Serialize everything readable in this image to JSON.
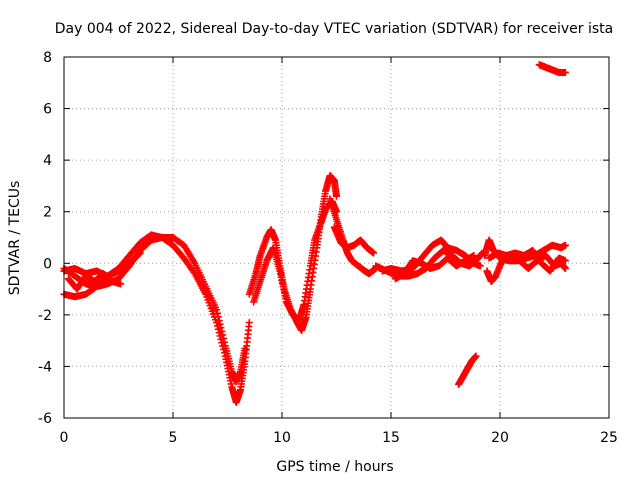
{
  "chart_data": {
    "type": "scatter",
    "title": "Day 004 of 2022, Sidereal Day-to-day VTEC variation (SDTVAR) for receiver ista",
    "xlabel": "GPS time / hours",
    "ylabel": "SDTVAR / TECUs",
    "xlim": [
      0,
      25
    ],
    "ylim": [
      -6,
      8
    ],
    "xticks": [
      0,
      5,
      10,
      15,
      20,
      25
    ],
    "yticks": [
      -6,
      -4,
      -2,
      0,
      2,
      4,
      6,
      8
    ],
    "grid": true,
    "marker": "plus",
    "series": [
      {
        "name": "SDTVAR",
        "color": "#ff0000",
        "segments": [
          [
            [
              0.0,
              -0.2
            ],
            [
              0.5,
              -0.5
            ],
            [
              1.0,
              -0.8
            ],
            [
              1.5,
              -0.9
            ],
            [
              2.0,
              -0.8
            ],
            [
              2.5,
              -0.6
            ],
            [
              3.0,
              -0.1
            ],
            [
              3.5,
              0.5
            ],
            [
              4.0,
              0.9
            ],
            [
              4.5,
              1.0
            ],
            [
              5.0,
              0.7
            ],
            [
              5.5,
              0.2
            ],
            [
              6.0,
              -0.4
            ],
            [
              6.5,
              -1.2
            ],
            [
              7.0,
              -2.3
            ],
            [
              7.4,
              -3.6
            ],
            [
              7.7,
              -4.8
            ],
            [
              7.9,
              -5.4
            ],
            [
              8.1,
              -4.9
            ],
            [
              8.3,
              -3.8
            ],
            [
              8.5,
              -2.3
            ]
          ],
          [
            [
              0.0,
              -1.2
            ],
            [
              0.5,
              -1.3
            ],
            [
              1.0,
              -1.2
            ],
            [
              1.5,
              -0.9
            ],
            [
              2.0,
              -0.5
            ],
            [
              2.5,
              -0.2
            ],
            [
              3.0,
              0.3
            ],
            [
              3.5,
              0.8
            ],
            [
              4.0,
              1.1
            ],
            [
              4.5,
              1.0
            ],
            [
              5.0,
              1.0
            ],
            [
              5.5,
              0.7
            ],
            [
              6.0,
              0.0
            ],
            [
              6.5,
              -0.9
            ],
            [
              7.0,
              -1.8
            ],
            [
              7.4,
              -3.2
            ],
            [
              7.7,
              -4.2
            ],
            [
              7.9,
              -4.6
            ],
            [
              8.1,
              -4.2
            ],
            [
              8.3,
              -3.3
            ]
          ],
          [
            [
              0.0,
              -0.3
            ],
            [
              0.5,
              -0.2
            ],
            [
              1.0,
              -0.4
            ],
            [
              1.5,
              -0.3
            ],
            [
              2.0,
              -0.5
            ],
            [
              2.5,
              -0.3
            ],
            [
              3.0,
              0.0
            ],
            [
              3.5,
              0.4
            ]
          ],
          [
            [
              0.2,
              -0.6
            ],
            [
              0.6,
              -1.0
            ],
            [
              1.0,
              -0.5
            ],
            [
              1.4,
              -0.7
            ],
            [
              1.8,
              -0.4
            ],
            [
              2.2,
              -0.7
            ],
            [
              2.6,
              -0.8
            ]
          ],
          [
            [
              8.5,
              -1.2
            ],
            [
              8.8,
              -0.4
            ],
            [
              9.0,
              0.3
            ],
            [
              9.3,
              1.0
            ],
            [
              9.5,
              1.3
            ],
            [
              9.7,
              0.9
            ],
            [
              9.9,
              -0.1
            ],
            [
              10.1,
              -1.0
            ],
            [
              10.4,
              -1.8
            ],
            [
              10.7,
              -2.3
            ],
            [
              10.9,
              -2.6
            ],
            [
              11.1,
              -2.1
            ],
            [
              11.3,
              -1.0
            ],
            [
              11.6,
              0.6
            ],
            [
              11.8,
              1.8
            ],
            [
              12.0,
              2.8
            ],
            [
              12.2,
              3.4
            ],
            [
              12.4,
              3.2
            ],
            [
              12.5,
              2.6
            ]
          ],
          [
            [
              8.7,
              -1.5
            ],
            [
              9.0,
              -0.7
            ],
            [
              9.3,
              0.1
            ],
            [
              9.6,
              0.6
            ],
            [
              9.9,
              -0.3
            ],
            [
              10.2,
              -1.5
            ],
            [
              10.5,
              -2.0
            ],
            [
              10.8,
              -2.2
            ],
            [
              11.0,
              -1.6
            ],
            [
              11.3,
              -0.1
            ],
            [
              11.5,
              0.9
            ],
            [
              11.8,
              1.6
            ],
            [
              12.0,
              2.1
            ],
            [
              12.3,
              2.4
            ],
            [
              12.5,
              2.0
            ]
          ],
          [
            [
              12.2,
              2.5
            ],
            [
              12.5,
              1.7
            ],
            [
              12.8,
              0.9
            ],
            [
              13.0,
              0.4
            ],
            [
              13.2,
              0.1
            ],
            [
              13.5,
              -0.1
            ],
            [
              13.8,
              -0.3
            ],
            [
              14.0,
              -0.4
            ],
            [
              14.3,
              -0.2
            ]
          ],
          [
            [
              12.4,
              1.4
            ],
            [
              12.7,
              0.8
            ],
            [
              13.0,
              0.6
            ],
            [
              13.3,
              0.7
            ],
            [
              13.6,
              0.9
            ],
            [
              13.9,
              0.6
            ],
            [
              14.2,
              0.4
            ]
          ],
          [
            [
              14.3,
              -0.1
            ],
            [
              14.8,
              -0.3
            ],
            [
              15.3,
              -0.5
            ],
            [
              15.8,
              -0.5
            ],
            [
              16.2,
              -0.4
            ],
            [
              16.6,
              -0.2
            ],
            [
              17.0,
              0.2
            ],
            [
              17.4,
              0.5
            ],
            [
              17.8,
              0.3
            ],
            [
              18.2,
              0.0
            ],
            [
              18.6,
              -0.1
            ],
            [
              19.0,
              0.2
            ],
            [
              19.2,
              0.4
            ]
          ],
          [
            [
              14.6,
              -0.3
            ],
            [
              15.0,
              -0.2
            ],
            [
              15.5,
              -0.3
            ],
            [
              16.0,
              -0.2
            ],
            [
              16.5,
              0.3
            ],
            [
              16.9,
              0.7
            ],
            [
              17.3,
              0.9
            ],
            [
              17.6,
              0.6
            ],
            [
              18.0,
              0.5
            ],
            [
              18.4,
              0.3
            ],
            [
              18.8,
              0.0
            ],
            [
              19.1,
              -0.1
            ]
          ],
          [
            [
              15.2,
              -0.6
            ],
            [
              15.6,
              -0.4
            ],
            [
              16.0,
              0.1
            ],
            [
              16.4,
              0.0
            ],
            [
              16.8,
              -0.2
            ],
            [
              17.2,
              -0.1
            ],
            [
              17.6,
              0.2
            ],
            [
              18.0,
              -0.1
            ],
            [
              18.4,
              0.1
            ],
            [
              18.8,
              0.3
            ]
          ],
          [
            [
              19.3,
              0.3
            ],
            [
              19.5,
              0.9
            ],
            [
              19.7,
              0.5
            ],
            [
              20.0,
              0.2
            ],
            [
              20.4,
              0.1
            ],
            [
              20.8,
              0.1
            ],
            [
              21.2,
              0.2
            ],
            [
              21.6,
              0.3
            ],
            [
              22.0,
              0.5
            ],
            [
              22.4,
              0.7
            ],
            [
              22.8,
              0.6
            ],
            [
              23.0,
              0.7
            ]
          ],
          [
            [
              19.4,
              -0.3
            ],
            [
              19.6,
              -0.7
            ],
            [
              19.8,
              -0.5
            ],
            [
              20.1,
              0.1
            ],
            [
              20.5,
              0.2
            ],
            [
              20.9,
              0.1
            ],
            [
              21.3,
              -0.2
            ],
            [
              21.7,
              0.1
            ],
            [
              22.1,
              0.3
            ],
            [
              22.5,
              -0.1
            ],
            [
              22.8,
              0.0
            ],
            [
              23.0,
              -0.2
            ]
          ],
          [
            [
              19.5,
              0.2
            ],
            [
              19.9,
              0.4
            ],
            [
              20.3,
              0.3
            ],
            [
              20.7,
              0.4
            ],
            [
              21.1,
              0.3
            ],
            [
              21.5,
              0.5
            ],
            [
              21.9,
              0.0
            ],
            [
              22.3,
              -0.3
            ],
            [
              22.7,
              0.2
            ],
            [
              23.0,
              0.1
            ]
          ],
          [
            [
              18.1,
              -4.7
            ],
            [
              18.3,
              -4.4
            ],
            [
              18.5,
              -4.1
            ],
            [
              18.7,
              -3.8
            ],
            [
              18.9,
              -3.6
            ]
          ],
          [
            [
              21.8,
              7.7
            ],
            [
              22.1,
              7.6
            ],
            [
              22.4,
              7.5
            ],
            [
              22.7,
              7.4
            ],
            [
              23.0,
              7.4
            ]
          ]
        ]
      }
    ]
  }
}
